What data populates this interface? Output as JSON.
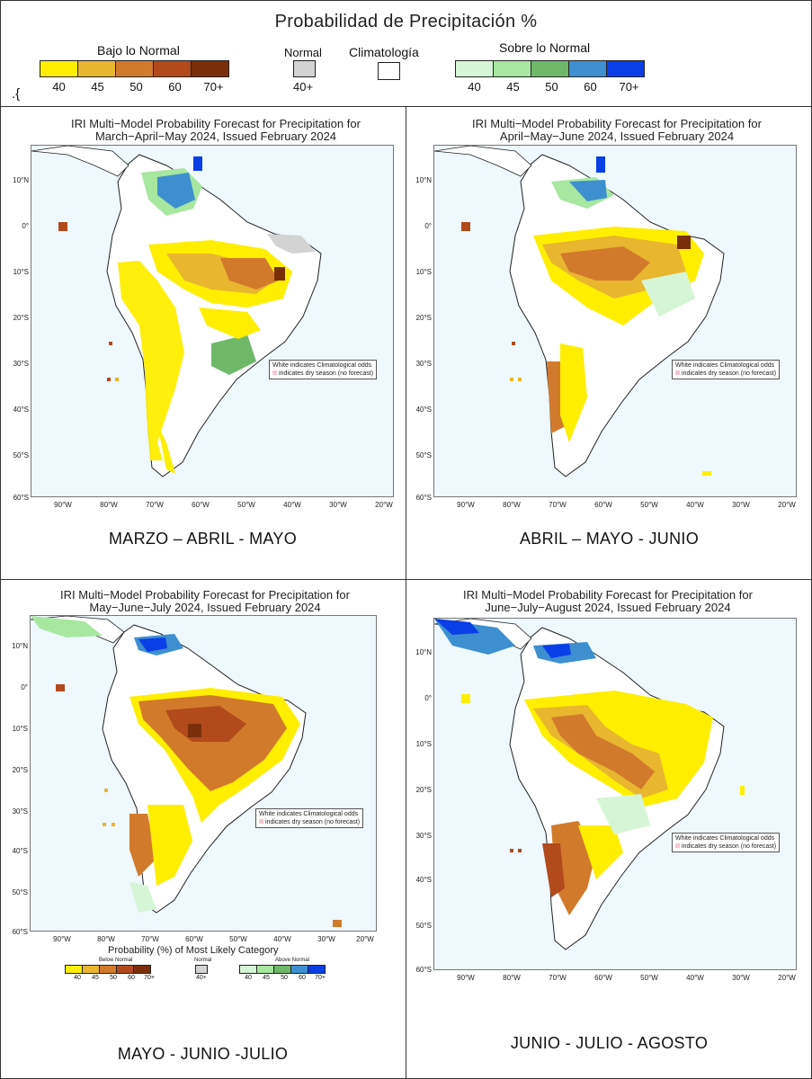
{
  "legend": {
    "title": "Probabilidad de Precipitación %",
    "below": {
      "label": "Bajo lo Normal",
      "ticks": [
        "40",
        "45",
        "50",
        "60",
        "70+"
      ],
      "colors": [
        "#ffee00",
        "#e8b62f",
        "#d27a2c",
        "#b24a1c",
        "#7a2f0a"
      ]
    },
    "normal": {
      "label": "Normal",
      "tick": "40+",
      "color": "#d3d3d3"
    },
    "climatology": {
      "label": "Climatología",
      "color": "#ffffff"
    },
    "above": {
      "label": "Sobre lo Normal",
      "ticks": [
        "40",
        "45",
        "50",
        "60",
        "70+"
      ],
      "colors": [
        "#d6f5d6",
        "#a7e7a0",
        "#6fb86a",
        "#3d8fcf",
        "#0a3ee6"
      ]
    },
    "stray_text": ".{"
  },
  "panels": [
    {
      "title_line1": "IRI Multi−Model Probability Forecast for Precipitation for",
      "title_line2": "March−April−May 2024, Issued February 2024",
      "season": "MARZO – ABRIL - MAYO"
    },
    {
      "title_line1": "IRI Multi−Model Probability Forecast for Precipitation for",
      "title_line2": "April−May−June 2024, Issued February 2024",
      "season": "ABRIL – MAYO - JUNIO"
    },
    {
      "title_line1": "IRI Multi−Model Probability Forecast for Precipitation for",
      "title_line2": "May−June−July 2024, Issued February 2024",
      "season": "MAYO - JUNIO -JULIO"
    },
    {
      "title_line1": "IRI Multi−Model Probability Forecast for Precipitation for",
      "title_line2": "June−July−August 2024, Issued February 2024",
      "season": "JUNIO - JULIO - AGOSTO"
    }
  ],
  "map_axes": {
    "lat_labels": [
      "10°N",
      "0°",
      "10°S",
      "20°S",
      "30°S",
      "40°S",
      "50°S",
      "60°S"
    ],
    "lon_labels": [
      "90°W",
      "80°W",
      "70°W",
      "60°W",
      "50°W",
      "40°W",
      "30°W",
      "20°W"
    ]
  },
  "map_note": {
    "line1": "White indicates Climatological odds",
    "line2": "indicates dry season (no forecast)"
  },
  "inner_legend": {
    "title": "Probability (%) of Most Likely Category",
    "below_label": "Below Normal",
    "normal_label": "Normal",
    "above_label": "Above Normal",
    "below_ticks": [
      "40",
      "45",
      "50",
      "60",
      "70+"
    ],
    "normal_tick": "40+",
    "above_ticks": [
      "40",
      "45",
      "50",
      "60",
      "70+"
    ]
  }
}
